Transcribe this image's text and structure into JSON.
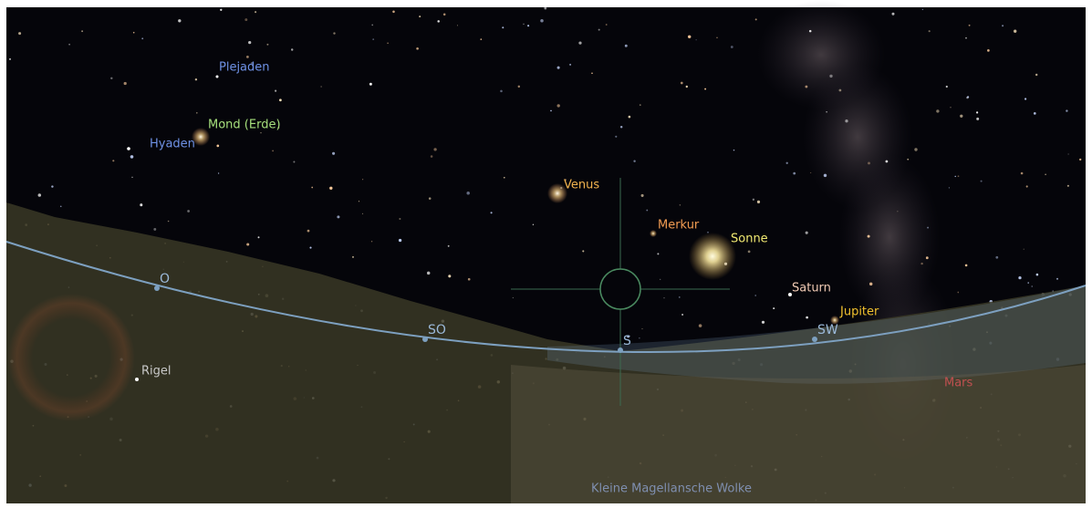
{
  "objects": [
    "Plejaden",
    "Mond (Erde)",
    "Hyaden",
    "Venus",
    "Merkur",
    "Sonne",
    "Saturn",
    "Jupiter",
    "Rigel",
    "Mars"
  ],
  "compass": [
    "O",
    "SO",
    "S",
    "SW"
  ],
  "deep_sky": "Kleine Magellansche Wolke"
}
